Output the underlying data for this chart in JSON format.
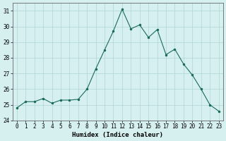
{
  "x": [
    0,
    1,
    2,
    3,
    4,
    5,
    6,
    7,
    8,
    9,
    10,
    11,
    12,
    13,
    14,
    15,
    16,
    17,
    18,
    19,
    20,
    21,
    22,
    23
  ],
  "y": [
    24.8,
    25.2,
    25.2,
    25.4,
    25.1,
    25.3,
    25.3,
    25.35,
    26.0,
    27.3,
    28.5,
    29.7,
    31.1,
    29.85,
    30.1,
    29.3,
    29.8,
    28.2,
    28.55,
    27.6,
    26.9,
    26.0,
    25.0,
    24.6
  ],
  "line_color": "#1a6b5a",
  "marker": ".",
  "marker_size": 3,
  "background_color": "#d6f0f0",
  "grid_color": "#aed4d4",
  "xlabel": "Humidex (Indice chaleur)",
  "ylim": [
    24,
    31.5
  ],
  "xlim": [
    -0.5,
    23.5
  ],
  "yticks": [
    24,
    25,
    26,
    27,
    28,
    29,
    30,
    31
  ],
  "xticks": [
    0,
    1,
    2,
    3,
    4,
    5,
    6,
    7,
    8,
    9,
    10,
    11,
    12,
    13,
    14,
    15,
    16,
    17,
    18,
    19,
    20,
    21,
    22,
    23
  ],
  "tick_fontsize": 5.5,
  "label_fontsize": 6.5
}
